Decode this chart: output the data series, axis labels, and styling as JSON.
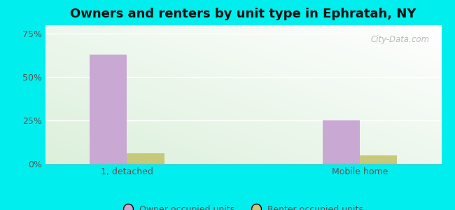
{
  "title": "Owners and renters by unit type in Ephratah, NY",
  "categories": [
    "1, detached",
    "Mobile home"
  ],
  "owner_values": [
    63,
    25
  ],
  "renter_values": [
    6,
    5
  ],
  "owner_color": "#c9a8d4",
  "renter_color": "#c8c87a",
  "yticks": [
    0,
    25,
    50,
    75
  ],
  "ytick_labels": [
    "0%",
    "25%",
    "50%",
    "75%"
  ],
  "ylim": [
    0,
    80
  ],
  "bar_width": 0.32,
  "legend_owner": "Owner occupied units",
  "legend_renter": "Renter occupied units",
  "bg_color_outer": "#00eeee",
  "watermark": "City-Data.com",
  "group_positions": [
    0.7,
    2.7
  ],
  "xlim": [
    0.0,
    3.4
  ]
}
